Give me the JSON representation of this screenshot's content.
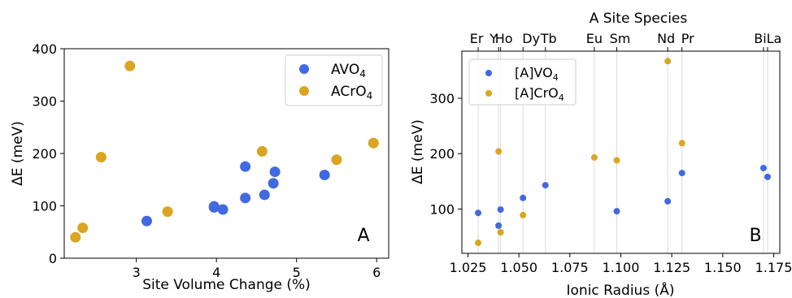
{
  "chart_data": [
    {
      "type": "scatter",
      "panel_label": "A",
      "xlabel": "Site Volume Change (%)",
      "ylabel": "ΔE (meV)",
      "xlim": [
        2.1,
        6.15
      ],
      "ylim": [
        0,
        400
      ],
      "xticks": [
        3,
        4,
        5,
        6
      ],
      "yticks": [
        0,
        100,
        200,
        300,
        400
      ],
      "grid": false,
      "legend_position": "top-right",
      "series": [
        {
          "name": "AVO",
          "subscript": "4",
          "color": "#4169e1",
          "points": [
            {
              "x": 3.13,
              "y": 71
            },
            {
              "x": 3.97,
              "y": 99
            },
            {
              "x": 3.97,
              "y": 97
            },
            {
              "x": 4.08,
              "y": 93
            },
            {
              "x": 4.36,
              "y": 175
            },
            {
              "x": 4.36,
              "y": 115
            },
            {
              "x": 4.6,
              "y": 121
            },
            {
              "x": 4.71,
              "y": 143
            },
            {
              "x": 4.73,
              "y": 165
            },
            {
              "x": 5.35,
              "y": 159
            }
          ]
        },
        {
          "name": "ACrO",
          "subscript": "4",
          "color": "#daa520",
          "points": [
            {
              "x": 2.24,
              "y": 40
            },
            {
              "x": 2.33,
              "y": 58
            },
            {
              "x": 2.56,
              "y": 193
            },
            {
              "x": 2.92,
              "y": 367
            },
            {
              "x": 3.39,
              "y": 89
            },
            {
              "x": 4.57,
              "y": 204
            },
            {
              "x": 5.5,
              "y": 188
            },
            {
              "x": 5.96,
              "y": 220
            }
          ]
        }
      ]
    },
    {
      "type": "scatter",
      "panel_label": "B",
      "title": "A Site Species",
      "xlabel": "Ionic Radius (Å)",
      "ylabel": "ΔE (meV)",
      "xlim": [
        1.022,
        1.178
      ],
      "ylim": [
        20,
        385
      ],
      "xticks": [
        1.025,
        1.05,
        1.075,
        1.1,
        1.125,
        1.15,
        1.175
      ],
      "xtick_labels": [
        "1.025",
        "1.050",
        "1.075",
        "1.100",
        "1.125",
        "1.150",
        "1.175"
      ],
      "yticks": [
        100,
        200,
        300
      ],
      "grid": "vertical lines at species radii",
      "legend_position": "top-left",
      "species": [
        {
          "label": "Er",
          "x": 1.03
        },
        {
          "label": "Y",
          "x": 1.04
        },
        {
          "label": "Ho",
          "x": 1.041
        },
        {
          "label": "Dy",
          "x": 1.052
        },
        {
          "label": "Tb",
          "x": 1.063
        },
        {
          "label": "Eu",
          "x": 1.087
        },
        {
          "label": "Sm",
          "x": 1.098
        },
        {
          "label": "Nd",
          "x": 1.123
        },
        {
          "label": "Pr",
          "x": 1.13
        },
        {
          "label": "Bi",
          "x": 1.17
        },
        {
          "label": "La",
          "x": 1.172
        }
      ],
      "series": [
        {
          "name": "[A]VO",
          "subscript": "4",
          "color": "#4169e1",
          "points": [
            {
              "x": 1.03,
              "y": 93
            },
            {
              "x": 1.04,
              "y": 70
            },
            {
              "x": 1.041,
              "y": 99
            },
            {
              "x": 1.052,
              "y": 120
            },
            {
              "x": 1.063,
              "y": 143
            },
            {
              "x": 1.098,
              "y": 96
            },
            {
              "x": 1.123,
              "y": 114
            },
            {
              "x": 1.13,
              "y": 165
            },
            {
              "x": 1.17,
              "y": 174
            },
            {
              "x": 1.172,
              "y": 158
            }
          ]
        },
        {
          "name": "[A]CrO",
          "subscript": "4",
          "color": "#daa520",
          "points": [
            {
              "x": 1.03,
              "y": 39
            },
            {
              "x": 1.04,
              "y": 204
            },
            {
              "x": 1.041,
              "y": 58
            },
            {
              "x": 1.052,
              "y": 89
            },
            {
              "x": 1.087,
              "y": 193
            },
            {
              "x": 1.098,
              "y": 188
            },
            {
              "x": 1.123,
              "y": 367
            },
            {
              "x": 1.13,
              "y": 219
            }
          ]
        }
      ]
    }
  ]
}
